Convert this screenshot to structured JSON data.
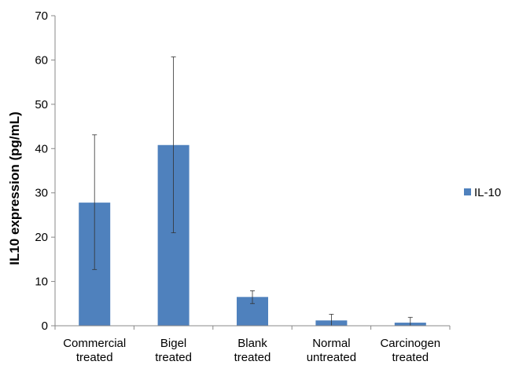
{
  "chart_data": {
    "type": "bar",
    "title": "",
    "xlabel": "",
    "ylabel": "IL10 expression (pg/mL)",
    "ylim": [
      0,
      70
    ],
    "yticks": [
      0,
      10,
      20,
      30,
      40,
      50,
      60,
      70
    ],
    "categories": [
      [
        "Commercial",
        "treated"
      ],
      [
        "Bigel",
        "treated"
      ],
      [
        "Blank",
        "treated"
      ],
      [
        "Normal",
        "untreated"
      ],
      [
        "Carcinogen",
        "treated"
      ]
    ],
    "series": [
      {
        "name": "IL-10",
        "color": "#4f81bd",
        "values": [
          27.8,
          40.8,
          6.5,
          1.2,
          0.7
        ],
        "error_low": [
          12.7,
          21.0,
          5.0,
          0.0,
          0.0
        ],
        "error_high": [
          43.1,
          60.7,
          7.9,
          2.6,
          1.9
        ]
      }
    ],
    "grid": false,
    "legend_position": "right"
  }
}
